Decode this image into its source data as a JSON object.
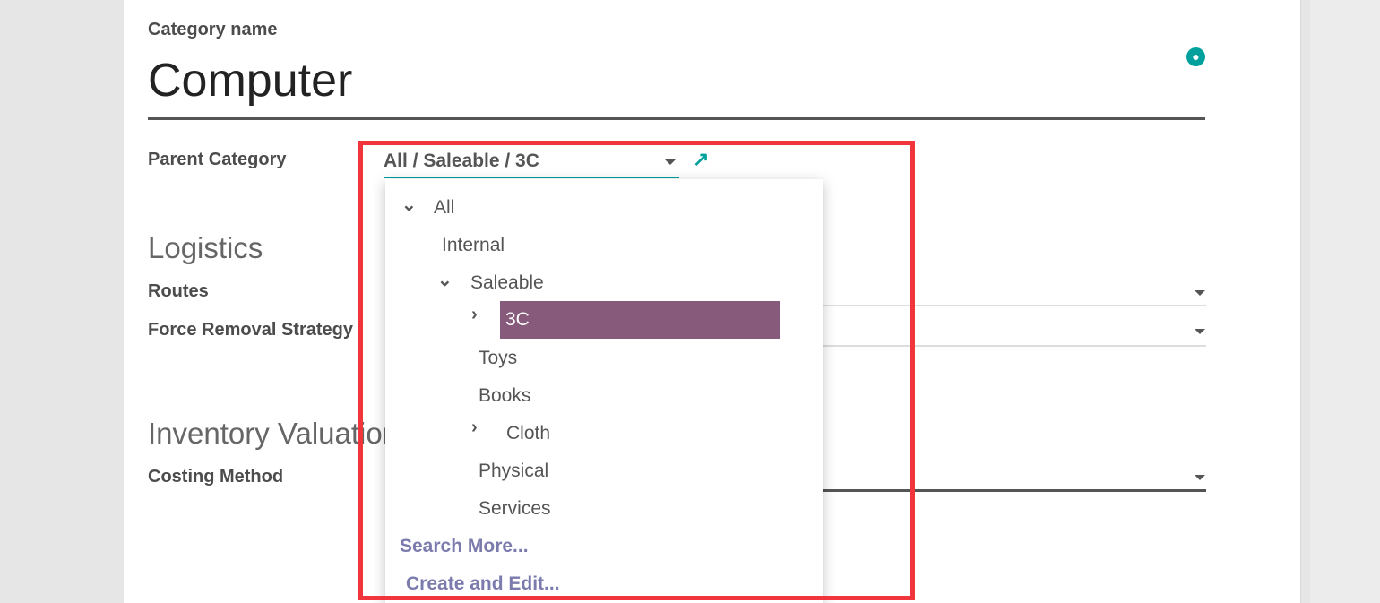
{
  "form": {
    "category_name_label": "Category name",
    "category_name": "Computer",
    "parent_category_label": "Parent Category",
    "parent_category_value": "All / Saleable / 3C",
    "logistics_heading": "Logistics",
    "routes_label": "Routes",
    "force_removal_label": "Force Removal Strategy",
    "inventory_valuation_heading": "Inventory Valuation",
    "costing_method_label": "Costing Method"
  },
  "dropdown": {
    "items": [
      {
        "label": "All",
        "icon": "chevron-down",
        "level": 0
      },
      {
        "label": "Internal",
        "level": 1
      },
      {
        "label": "Saleable",
        "icon": "chevron-down",
        "level": 1
      },
      {
        "label": "3C",
        "icon": "chevron-right",
        "level": 2,
        "selected": true
      },
      {
        "label": "Toys",
        "level": 2
      },
      {
        "label": "Books",
        "level": 2
      },
      {
        "label": "Cloth",
        "icon": "chevron-right",
        "level": 2
      },
      {
        "label": "Physical",
        "level": 2
      },
      {
        "label": "Services",
        "level": 2
      }
    ],
    "search_more": "Search More...",
    "create_and_edit": "Create and Edit..."
  },
  "colors": {
    "selected": "#875a7b",
    "accent": "#00a09d",
    "link": "#7c7bad",
    "highlight_box": "#f0363c"
  }
}
